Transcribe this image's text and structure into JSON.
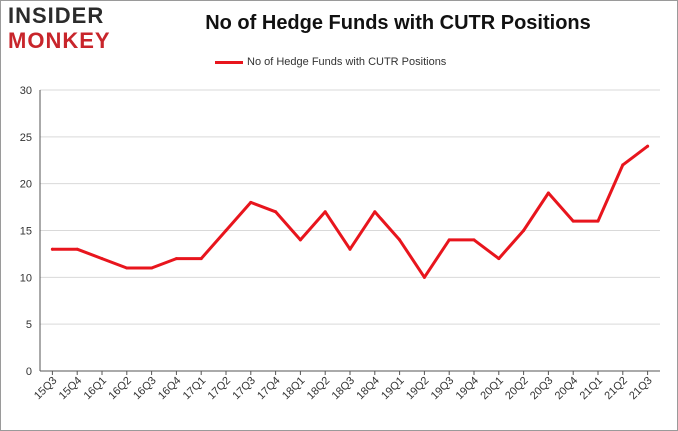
{
  "logo": {
    "line1": "INSIDER",
    "line2": "MONKEY"
  },
  "colors": {
    "series": "#e8151d",
    "grid": "#d9d9d9",
    "axis": "#555555",
    "logo_red": "#c8252b"
  },
  "chart_data": {
    "type": "line",
    "title": "No of Hedge Funds with CUTR Positions",
    "xlabel": "",
    "ylabel": "",
    "ylim": [
      0,
      30
    ],
    "yticks": [
      0,
      5,
      10,
      15,
      20,
      25,
      30
    ],
    "grid": true,
    "legend_position": "top-center",
    "categories": [
      "15Q3",
      "15Q4",
      "16Q1",
      "16Q2",
      "16Q3",
      "16Q4",
      "17Q1",
      "17Q2",
      "17Q3",
      "17Q4",
      "18Q1",
      "18Q2",
      "18Q3",
      "18Q4",
      "19Q1",
      "19Q2",
      "19Q3",
      "19Q4",
      "20Q1",
      "20Q2",
      "20Q3",
      "20Q4",
      "21Q1",
      "21Q2",
      "21Q3"
    ],
    "series": [
      {
        "name": "No of Hedge Funds with CUTR Positions",
        "values": [
          13,
          13,
          12,
          11,
          11,
          12,
          12,
          15,
          18,
          17,
          14,
          17,
          13,
          17,
          14,
          10,
          14,
          14,
          12,
          15,
          19,
          16,
          16,
          22,
          24
        ]
      }
    ]
  }
}
